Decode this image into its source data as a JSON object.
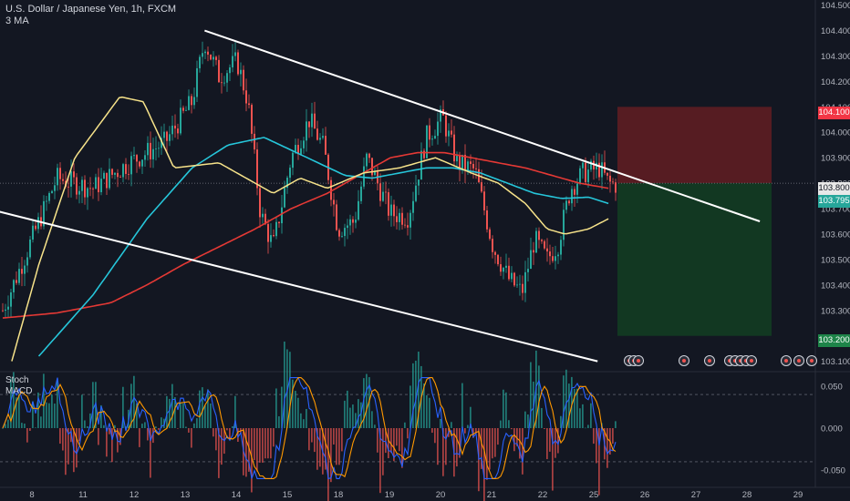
{
  "header": {
    "symbol_line": "U.S. Dollar / Japanese Yen, 1h, FXCM",
    "indicator_line": "3 MA"
  },
  "oscillator": {
    "name": "Stoch",
    "params": "MACD"
  },
  "price_tags": {
    "target_high": "104.100",
    "entry": "103.800",
    "current": "103.795",
    "target_low": "103.200"
  },
  "colors": {
    "background": "#131722",
    "bull": "#26a69a",
    "bear": "#ef5350",
    "ma_fast": "#f7e38a",
    "ma_mid": "#26c6da",
    "ma_slow": "#e53935",
    "channel": "#ffffff",
    "stop_zone": "#5a1c23",
    "target_zone": "#123a23"
  },
  "chart_data": {
    "type": "line",
    "title": "U.S. Dollar / Japanese Yen, 1h, FXCM",
    "price_axis": {
      "ticks": [
        "104.500",
        "104.400",
        "104.300",
        "104.200",
        "104.100",
        "104.000",
        "103.900",
        "103.800",
        "103.700",
        "103.600",
        "103.500",
        "103.400",
        "103.300",
        "103.100"
      ],
      "range": [
        103.07,
        104.52
      ]
    },
    "time_axis": {
      "ticks": [
        "8",
        "11",
        "12",
        "13",
        "14",
        "15",
        "18",
        "19",
        "20",
        "21",
        "22",
        "25",
        "26",
        "27",
        "28",
        "29"
      ]
    },
    "oscillator_axis": {
      "ticks": [
        "0.050",
        "0.000",
        "-0.050"
      ],
      "range": [
        -0.065,
        0.065
      ],
      "levels": [
        0.04,
        -0.04
      ]
    },
    "price_close_path": [
      {
        "t": 0,
        "v": 103.3
      },
      {
        "t": 3,
        "v": 103.82
      },
      {
        "t": 5,
        "v": 103.78
      },
      {
        "t": 7,
        "v": 103.88
      },
      {
        "t": 9,
        "v": 103.96
      },
      {
        "t": 10.5,
        "v": 104.12
      },
      {
        "t": 11.2,
        "v": 104.36
      },
      {
        "t": 12,
        "v": 104.22
      },
      {
        "t": 13,
        "v": 104.28
      },
      {
        "t": 13.6,
        "v": 104.12
      },
      {
        "t": 14.3,
        "v": 103.68
      },
      {
        "t": 15,
        "v": 103.55
      },
      {
        "t": 16,
        "v": 103.9
      },
      {
        "t": 17,
        "v": 104.05
      },
      {
        "t": 17.8,
        "v": 103.94
      },
      {
        "t": 18.6,
        "v": 103.62
      },
      {
        "t": 19.5,
        "v": 103.65
      },
      {
        "t": 20.2,
        "v": 103.9
      },
      {
        "t": 21.5,
        "v": 103.68
      },
      {
        "t": 22.5,
        "v": 103.67
      },
      {
        "t": 23.5,
        "v": 103.98
      },
      {
        "t": 24.4,
        "v": 104.06
      },
      {
        "t": 25.2,
        "v": 103.88
      },
      {
        "t": 26.2,
        "v": 103.85
      },
      {
        "t": 27.2,
        "v": 103.55
      },
      {
        "t": 28.1,
        "v": 103.42
      },
      {
        "t": 28.8,
        "v": 103.37
      },
      {
        "t": 29.5,
        "v": 103.58
      },
      {
        "t": 30.2,
        "v": 103.5
      },
      {
        "t": 30.8,
        "v": 103.56
      },
      {
        "t": 31.5,
        "v": 103.78
      },
      {
        "t": 32.2,
        "v": 103.84
      },
      {
        "t": 33.1,
        "v": 103.86
      },
      {
        "t": 33.6,
        "v": 103.8
      },
      {
        "t": 34,
        "v": 103.795
      }
    ],
    "ma_fast": [
      {
        "t": 0.5,
        "v": 103.1
      },
      {
        "t": 2,
        "v": 103.48
      },
      {
        "t": 4,
        "v": 103.9
      },
      {
        "t": 6.5,
        "v": 104.14
      },
      {
        "t": 7.8,
        "v": 104.12
      },
      {
        "t": 9.5,
        "v": 103.86
      },
      {
        "t": 12,
        "v": 103.88
      },
      {
        "t": 13.5,
        "v": 103.82
      },
      {
        "t": 15,
        "v": 103.76
      },
      {
        "t": 16.5,
        "v": 103.82
      },
      {
        "t": 18,
        "v": 103.78
      },
      {
        "t": 20,
        "v": 103.84
      },
      {
        "t": 22,
        "v": 103.86
      },
      {
        "t": 24,
        "v": 103.9
      },
      {
        "t": 26,
        "v": 103.84
      },
      {
        "t": 27.5,
        "v": 103.8
      },
      {
        "t": 29,
        "v": 103.72
      },
      {
        "t": 30.2,
        "v": 103.62
      },
      {
        "t": 31.2,
        "v": 103.6
      },
      {
        "t": 32.5,
        "v": 103.62
      },
      {
        "t": 33.6,
        "v": 103.66
      }
    ],
    "ma_mid": [
      {
        "t": 2,
        "v": 103.12
      },
      {
        "t": 5,
        "v": 103.36
      },
      {
        "t": 8,
        "v": 103.66
      },
      {
        "t": 10.5,
        "v": 103.86
      },
      {
        "t": 12.5,
        "v": 103.95
      },
      {
        "t": 14.5,
        "v": 103.98
      },
      {
        "t": 16,
        "v": 103.93
      },
      {
        "t": 17.5,
        "v": 103.88
      },
      {
        "t": 19,
        "v": 103.83
      },
      {
        "t": 20.5,
        "v": 103.82
      },
      {
        "t": 22,
        "v": 103.84
      },
      {
        "t": 23.5,
        "v": 103.86
      },
      {
        "t": 25,
        "v": 103.86
      },
      {
        "t": 26.5,
        "v": 103.84
      },
      {
        "t": 28,
        "v": 103.8
      },
      {
        "t": 29.5,
        "v": 103.76
      },
      {
        "t": 31,
        "v": 103.74
      },
      {
        "t": 32.5,
        "v": 103.745
      },
      {
        "t": 33.6,
        "v": 103.72
      }
    ],
    "ma_slow": [
      {
        "t": 0,
        "v": 103.27
      },
      {
        "t": 3,
        "v": 103.29
      },
      {
        "t": 6,
        "v": 103.33
      },
      {
        "t": 8,
        "v": 103.4
      },
      {
        "t": 10,
        "v": 103.48
      },
      {
        "t": 12,
        "v": 103.55
      },
      {
        "t": 14,
        "v": 103.62
      },
      {
        "t": 16,
        "v": 103.7
      },
      {
        "t": 18,
        "v": 103.76
      },
      {
        "t": 20,
        "v": 103.84
      },
      {
        "t": 21.5,
        "v": 103.9
      },
      {
        "t": 23,
        "v": 103.92
      },
      {
        "t": 24.5,
        "v": 103.92
      },
      {
        "t": 26,
        "v": 103.9
      },
      {
        "t": 27.5,
        "v": 103.88
      },
      {
        "t": 29,
        "v": 103.86
      },
      {
        "t": 30.5,
        "v": 103.83
      },
      {
        "t": 32,
        "v": 103.8
      },
      {
        "t": 33.6,
        "v": 103.78
      }
    ],
    "channel_upper": [
      {
        "t": 11.2,
        "v": 104.4
      },
      {
        "t": 42,
        "v": 103.65
      }
    ],
    "channel_lower": [
      {
        "t": -2,
        "v": 103.72
      },
      {
        "t": 33,
        "v": 103.1
      }
    ],
    "position": {
      "entry": 103.8,
      "stop": 104.1,
      "target": 103.2
    },
    "series": [
      {
        "name": "Stoch"
      },
      {
        "name": "MACD"
      }
    ]
  }
}
